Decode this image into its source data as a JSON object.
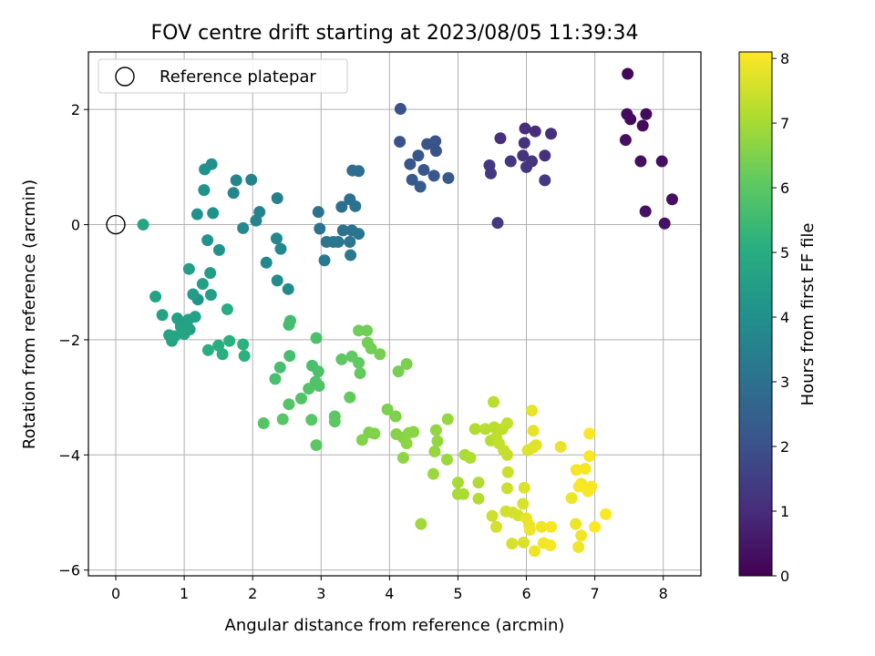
{
  "chart_data": {
    "type": "scatter",
    "title": "FOV centre drift starting at 2023/08/05 11:39:34",
    "xlabel": "Angular distance from reference (arcmin)",
    "ylabel": "Rotation from reference (arcmin)",
    "colorbar_label": "Hours from first FF file",
    "xlim": [
      -0.4,
      8.55
    ],
    "ylim": [
      -6.1,
      3.0
    ],
    "clim": [
      0,
      8.1
    ],
    "xticks": [
      0,
      1,
      2,
      3,
      4,
      5,
      6,
      7,
      8
    ],
    "yticks": [
      -6,
      -4,
      -2,
      0,
      2
    ],
    "colorbar_ticks": [
      0,
      1,
      2,
      3,
      4,
      5,
      6,
      7,
      8
    ],
    "colormap": "viridis",
    "grid": true,
    "legend": {
      "placement": "top-left",
      "label": "Reference platepar"
    },
    "reference_point": {
      "x": 0,
      "y": 0
    },
    "points": [
      {
        "x": 7.48,
        "y": 2.62,
        "h": 0.15
      },
      {
        "x": 7.47,
        "y": 1.92,
        "h": 0.2
      },
      {
        "x": 7.52,
        "y": 1.83,
        "h": 0.2
      },
      {
        "x": 7.75,
        "y": 1.92,
        "h": 0.25
      },
      {
        "x": 7.7,
        "y": 1.72,
        "h": 0.25
      },
      {
        "x": 7.45,
        "y": 1.47,
        "h": 0.3
      },
      {
        "x": 7.67,
        "y": 1.1,
        "h": 0.3
      },
      {
        "x": 7.98,
        "y": 1.1,
        "h": 0.35
      },
      {
        "x": 8.13,
        "y": 0.44,
        "h": 0.35
      },
      {
        "x": 7.74,
        "y": 0.23,
        "h": 0.4
      },
      {
        "x": 8.02,
        "y": 0.02,
        "h": 0.4
      },
      {
        "x": 5.98,
        "y": 1.67,
        "h": 1.05
      },
      {
        "x": 6.13,
        "y": 1.62,
        "h": 1.05
      },
      {
        "x": 6.36,
        "y": 1.58,
        "h": 1.1
      },
      {
        "x": 5.62,
        "y": 1.5,
        "h": 1.1
      },
      {
        "x": 5.97,
        "y": 1.42,
        "h": 1.15
      },
      {
        "x": 6.27,
        "y": 1.2,
        "h": 1.15
      },
      {
        "x": 5.95,
        "y": 1.2,
        "h": 1.2
      },
      {
        "x": 6.08,
        "y": 1.1,
        "h": 1.2
      },
      {
        "x": 5.77,
        "y": 1.1,
        "h": 1.25
      },
      {
        "x": 6.0,
        "y": 1.0,
        "h": 1.25
      },
      {
        "x": 5.46,
        "y": 1.03,
        "h": 1.3
      },
      {
        "x": 5.48,
        "y": 0.89,
        "h": 1.3
      },
      {
        "x": 6.27,
        "y": 0.77,
        "h": 1.35
      },
      {
        "x": 5.58,
        "y": 0.03,
        "h": 1.35
      },
      {
        "x": 4.16,
        "y": 2.01,
        "h": 2.0
      },
      {
        "x": 4.15,
        "y": 1.44,
        "h": 2.05
      },
      {
        "x": 4.55,
        "y": 1.4,
        "h": 2.05
      },
      {
        "x": 4.67,
        "y": 1.45,
        "h": 2.1
      },
      {
        "x": 4.68,
        "y": 1.28,
        "h": 2.1
      },
      {
        "x": 4.42,
        "y": 1.2,
        "h": 2.15
      },
      {
        "x": 4.3,
        "y": 1.05,
        "h": 2.15
      },
      {
        "x": 4.5,
        "y": 0.95,
        "h": 2.2
      },
      {
        "x": 4.65,
        "y": 0.85,
        "h": 2.2
      },
      {
        "x": 4.33,
        "y": 0.78,
        "h": 2.25
      },
      {
        "x": 4.86,
        "y": 0.81,
        "h": 2.25
      },
      {
        "x": 4.45,
        "y": 0.66,
        "h": 2.3
      },
      {
        "x": 3.46,
        "y": 0.94,
        "h": 2.9
      },
      {
        "x": 3.55,
        "y": 0.93,
        "h": 2.9
      },
      {
        "x": 3.42,
        "y": 0.44,
        "h": 2.95
      },
      {
        "x": 3.3,
        "y": 0.31,
        "h": 2.95
      },
      {
        "x": 3.5,
        "y": 0.32,
        "h": 3.0
      },
      {
        "x": 2.96,
        "y": 0.22,
        "h": 3.0
      },
      {
        "x": 3.32,
        "y": -0.1,
        "h": 3.05
      },
      {
        "x": 2.98,
        "y": -0.07,
        "h": 3.05
      },
      {
        "x": 3.45,
        "y": -0.1,
        "h": 3.1
      },
      {
        "x": 3.55,
        "y": -0.16,
        "h": 3.1
      },
      {
        "x": 3.08,
        "y": -0.3,
        "h": 3.15
      },
      {
        "x": 3.18,
        "y": -0.3,
        "h": 3.15
      },
      {
        "x": 3.25,
        "y": -0.3,
        "h": 3.2
      },
      {
        "x": 3.42,
        "y": -0.3,
        "h": 3.2
      },
      {
        "x": 3.43,
        "y": -0.53,
        "h": 3.25
      },
      {
        "x": 3.05,
        "y": -0.62,
        "h": 3.25
      },
      {
        "x": 2.36,
        "y": 0.46,
        "h": 3.5
      },
      {
        "x": 2.1,
        "y": 0.22,
        "h": 3.55
      },
      {
        "x": 2.05,
        "y": 0.07,
        "h": 3.6
      },
      {
        "x": 1.98,
        "y": 0.78,
        "h": 3.6
      },
      {
        "x": 1.76,
        "y": 0.77,
        "h": 3.65
      },
      {
        "x": 1.72,
        "y": 0.55,
        "h": 3.7
      },
      {
        "x": 1.86,
        "y": -0.06,
        "h": 3.75
      },
      {
        "x": 2.35,
        "y": -0.24,
        "h": 3.75
      },
      {
        "x": 2.41,
        "y": -0.42,
        "h": 3.8
      },
      {
        "x": 2.2,
        "y": -0.66,
        "h": 3.8
      },
      {
        "x": 2.36,
        "y": -0.97,
        "h": 3.85
      },
      {
        "x": 2.52,
        "y": -1.12,
        "h": 3.85
      },
      {
        "x": 1.4,
        "y": 1.05,
        "h": 4.0
      },
      {
        "x": 1.3,
        "y": 0.96,
        "h": 4.05
      },
      {
        "x": 1.29,
        "y": 0.6,
        "h": 4.05
      },
      {
        "x": 1.42,
        "y": 0.2,
        "h": 4.1
      },
      {
        "x": 1.19,
        "y": 0.18,
        "h": 4.1
      },
      {
        "x": 1.34,
        "y": -0.27,
        "h": 4.15
      },
      {
        "x": 1.51,
        "y": -0.44,
        "h": 4.15
      },
      {
        "x": 1.2,
        "y": -1.3,
        "h": 4.2
      },
      {
        "x": 0.4,
        "y": -0.0,
        "h": 4.8
      },
      {
        "x": 0.58,
        "y": -1.25,
        "h": 4.6
      },
      {
        "x": 0.68,
        "y": -1.57,
        "h": 4.6
      },
      {
        "x": 1.07,
        "y": -0.77,
        "h": 4.5
      },
      {
        "x": 1.13,
        "y": -1.21,
        "h": 4.45
      },
      {
        "x": 1.38,
        "y": -0.84,
        "h": 4.45
      },
      {
        "x": 1.39,
        "y": -1.22,
        "h": 4.5
      },
      {
        "x": 1.27,
        "y": -1.03,
        "h": 4.5
      },
      {
        "x": 0.9,
        "y": -1.63,
        "h": 4.55
      },
      {
        "x": 0.95,
        "y": -1.7,
        "h": 4.55
      },
      {
        "x": 1.06,
        "y": -1.65,
        "h": 4.6
      },
      {
        "x": 1.16,
        "y": -1.6,
        "h": 4.6
      },
      {
        "x": 0.95,
        "y": -1.77,
        "h": 4.65
      },
      {
        "x": 1.08,
        "y": -1.82,
        "h": 4.65
      },
      {
        "x": 0.78,
        "y": -1.92,
        "h": 4.7
      },
      {
        "x": 0.82,
        "y": -2.02,
        "h": 4.7
      },
      {
        "x": 1.0,
        "y": -1.9,
        "h": 4.75
      },
      {
        "x": 0.86,
        "y": -1.94,
        "h": 4.75
      },
      {
        "x": 1.63,
        "y": -1.47,
        "h": 5.0
      },
      {
        "x": 1.35,
        "y": -2.18,
        "h": 5.05
      },
      {
        "x": 1.5,
        "y": -2.1,
        "h": 5.05
      },
      {
        "x": 1.66,
        "y": -2.02,
        "h": 5.1
      },
      {
        "x": 1.56,
        "y": -2.25,
        "h": 5.1
      },
      {
        "x": 1.86,
        "y": -2.08,
        "h": 5.15
      },
      {
        "x": 1.88,
        "y": -2.28,
        "h": 5.15
      },
      {
        "x": 2.55,
        "y": -1.67,
        "h": 5.6
      },
      {
        "x": 2.53,
        "y": -1.74,
        "h": 5.6
      },
      {
        "x": 2.54,
        "y": -2.28,
        "h": 5.65
      },
      {
        "x": 2.4,
        "y": -2.48,
        "h": 5.65
      },
      {
        "x": 2.33,
        "y": -2.68,
        "h": 5.7
      },
      {
        "x": 2.87,
        "y": -2.45,
        "h": 5.7
      },
      {
        "x": 2.93,
        "y": -1.97,
        "h": 5.75
      },
      {
        "x": 2.96,
        "y": -2.55,
        "h": 5.75
      },
      {
        "x": 2.92,
        "y": -2.73,
        "h": 5.8
      },
      {
        "x": 2.97,
        "y": -2.8,
        "h": 5.8
      },
      {
        "x": 2.82,
        "y": -2.85,
        "h": 5.85
      },
      {
        "x": 2.71,
        "y": -3.02,
        "h": 5.85
      },
      {
        "x": 2.53,
        "y": -3.12,
        "h": 5.9
      },
      {
        "x": 2.16,
        "y": -3.45,
        "h": 5.9
      },
      {
        "x": 2.44,
        "y": -3.38,
        "h": 5.95
      },
      {
        "x": 2.86,
        "y": -3.39,
        "h": 5.95
      },
      {
        "x": 2.93,
        "y": -3.83,
        "h": 6.0
      },
      {
        "x": 3.2,
        "y": -3.33,
        "h": 6.0
      },
      {
        "x": 3.2,
        "y": -3.42,
        "h": 6.05
      },
      {
        "x": 3.3,
        "y": -2.34,
        "h": 6.05
      },
      {
        "x": 3.45,
        "y": -2.29,
        "h": 6.1
      },
      {
        "x": 3.55,
        "y": -2.4,
        "h": 6.1
      },
      {
        "x": 3.57,
        "y": -2.58,
        "h": 6.15
      },
      {
        "x": 3.42,
        "y": -3.0,
        "h": 6.15
      },
      {
        "x": 3.55,
        "y": -1.84,
        "h": 6.3
      },
      {
        "x": 3.67,
        "y": -1.84,
        "h": 6.3
      },
      {
        "x": 3.68,
        "y": -2.05,
        "h": 6.35
      },
      {
        "x": 3.73,
        "y": -2.15,
        "h": 6.35
      },
      {
        "x": 3.86,
        "y": -2.25,
        "h": 6.4
      },
      {
        "x": 4.13,
        "y": -2.55,
        "h": 6.4
      },
      {
        "x": 4.25,
        "y": -2.42,
        "h": 6.45
      },
      {
        "x": 3.97,
        "y": -3.21,
        "h": 6.45
      },
      {
        "x": 4.09,
        "y": -3.33,
        "h": 6.5
      },
      {
        "x": 3.7,
        "y": -3.61,
        "h": 6.5
      },
      {
        "x": 3.78,
        "y": -3.63,
        "h": 6.55
      },
      {
        "x": 3.6,
        "y": -3.74,
        "h": 6.55
      },
      {
        "x": 4.1,
        "y": -3.64,
        "h": 6.6
      },
      {
        "x": 4.2,
        "y": -3.7,
        "h": 6.6
      },
      {
        "x": 4.28,
        "y": -3.62,
        "h": 6.65
      },
      {
        "x": 4.35,
        "y": -3.6,
        "h": 6.65
      },
      {
        "x": 4.25,
        "y": -3.8,
        "h": 6.7
      },
      {
        "x": 4.2,
        "y": -4.05,
        "h": 6.7
      },
      {
        "x": 4.68,
        "y": -3.57,
        "h": 6.75
      },
      {
        "x": 4.7,
        "y": -3.76,
        "h": 6.75
      },
      {
        "x": 4.85,
        "y": -3.38,
        "h": 6.8
      },
      {
        "x": 4.66,
        "y": -3.94,
        "h": 6.8
      },
      {
        "x": 4.84,
        "y": -4.08,
        "h": 6.85
      },
      {
        "x": 4.64,
        "y": -4.33,
        "h": 6.85
      },
      {
        "x": 4.46,
        "y": -5.2,
        "h": 6.9
      },
      {
        "x": 5.0,
        "y": -4.48,
        "h": 7.0
      },
      {
        "x": 5.0,
        "y": -4.68,
        "h": 7.0
      },
      {
        "x": 5.08,
        "y": -4.68,
        "h": 7.05
      },
      {
        "x": 5.1,
        "y": -4.0,
        "h": 7.05
      },
      {
        "x": 5.18,
        "y": -4.05,
        "h": 7.1
      },
      {
        "x": 5.3,
        "y": -4.48,
        "h": 7.1
      },
      {
        "x": 5.3,
        "y": -4.76,
        "h": 7.15
      },
      {
        "x": 5.25,
        "y": -3.55,
        "h": 7.15
      },
      {
        "x": 5.4,
        "y": -3.55,
        "h": 7.2
      },
      {
        "x": 5.48,
        "y": -3.75,
        "h": 7.2
      },
      {
        "x": 5.52,
        "y": -3.08,
        "h": 7.25
      },
      {
        "x": 5.53,
        "y": -3.52,
        "h": 7.25
      },
      {
        "x": 5.56,
        "y": -3.7,
        "h": 7.3
      },
      {
        "x": 5.65,
        "y": -3.55,
        "h": 7.3
      },
      {
        "x": 5.72,
        "y": -3.45,
        "h": 7.35
      },
      {
        "x": 5.6,
        "y": -3.8,
        "h": 7.35
      },
      {
        "x": 5.67,
        "y": -3.92,
        "h": 7.4
      },
      {
        "x": 5.72,
        "y": -4.0,
        "h": 7.4
      },
      {
        "x": 5.73,
        "y": -4.3,
        "h": 7.45
      },
      {
        "x": 5.72,
        "y": -4.58,
        "h": 7.45
      },
      {
        "x": 5.7,
        "y": -4.98,
        "h": 7.5
      },
      {
        "x": 5.5,
        "y": -5.06,
        "h": 7.5
      },
      {
        "x": 5.56,
        "y": -5.25,
        "h": 7.55
      },
      {
        "x": 5.8,
        "y": -5.0,
        "h": 7.55
      },
      {
        "x": 5.88,
        "y": -5.05,
        "h": 7.6
      },
      {
        "x": 5.79,
        "y": -5.54,
        "h": 7.6
      },
      {
        "x": 5.96,
        "y": -5.52,
        "h": 7.65
      },
      {
        "x": 5.95,
        "y": -4.85,
        "h": 7.65
      },
      {
        "x": 5.97,
        "y": -4.57,
        "h": 7.7
      },
      {
        "x": 6.02,
        "y": -3.92,
        "h": 7.7
      },
      {
        "x": 6.1,
        "y": -3.87,
        "h": 7.75
      },
      {
        "x": 6.14,
        "y": -3.83,
        "h": 7.75
      },
      {
        "x": 6.1,
        "y": -3.58,
        "h": 7.8
      },
      {
        "x": 6.08,
        "y": -3.23,
        "h": 7.8
      },
      {
        "x": 6.0,
        "y": -5.1,
        "h": 7.85
      },
      {
        "x": 6.04,
        "y": -5.22,
        "h": 7.85
      },
      {
        "x": 6.05,
        "y": -5.3,
        "h": 7.9
      },
      {
        "x": 6.12,
        "y": -5.67,
        "h": 7.9
      },
      {
        "x": 6.22,
        "y": -5.25,
        "h": 7.95
      },
      {
        "x": 6.25,
        "y": -5.53,
        "h": 7.95
      },
      {
        "x": 6.35,
        "y": -5.57,
        "h": 8.0
      },
      {
        "x": 6.36,
        "y": -5.25,
        "h": 8.0
      },
      {
        "x": 6.5,
        "y": -3.86,
        "h": 7.85
      },
      {
        "x": 6.66,
        "y": -4.75,
        "h": 7.9
      },
      {
        "x": 6.72,
        "y": -5.2,
        "h": 7.9
      },
      {
        "x": 6.76,
        "y": -5.6,
        "h": 7.95
      },
      {
        "x": 6.8,
        "y": -5.4,
        "h": 7.95
      },
      {
        "x": 6.73,
        "y": -4.26,
        "h": 8.0
      },
      {
        "x": 6.8,
        "y": -4.5,
        "h": 8.0
      },
      {
        "x": 6.86,
        "y": -4.24,
        "h": 8.0
      },
      {
        "x": 6.9,
        "y": -4.63,
        "h": 8.05
      },
      {
        "x": 6.95,
        "y": -4.55,
        "h": 8.05
      },
      {
        "x": 6.92,
        "y": -4.02,
        "h": 8.05
      },
      {
        "x": 6.92,
        "y": -3.63,
        "h": 8.1
      },
      {
        "x": 7.0,
        "y": -5.25,
        "h": 8.1
      },
      {
        "x": 7.16,
        "y": -5.03,
        "h": 8.1
      },
      {
        "x": 6.77,
        "y": -4.55,
        "h": 8.05
      }
    ]
  }
}
